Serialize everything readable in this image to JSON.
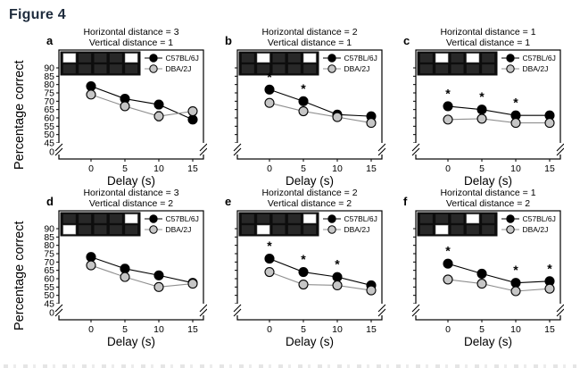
{
  "figure": {
    "label": "Figure 4"
  },
  "y_axis": {
    "label": "Percentage correct",
    "ticks": [
      90,
      85,
      80,
      75,
      70,
      65,
      60,
      55,
      50,
      45
    ],
    "zero_tick": 0,
    "break_between": [
      45,
      0
    ]
  },
  "x_axis": {
    "label": "Delay (s)",
    "ticks": [
      0,
      5,
      10,
      15
    ]
  },
  "legend": {
    "position": "top-right-inside",
    "entries": [
      "C57BL/6J",
      "DBA/2J"
    ]
  },
  "colors": {
    "c57_line": "#000000",
    "c57_fill": "#000000",
    "dba_line": "#8f8f8f",
    "dba_fill": "#c6c6c6",
    "inset_bg": "#0d0d0d",
    "inset_dark_square": "#282828",
    "inset_lit_square": "#ffffff",
    "frame": "#000000",
    "title_text": "#000000",
    "figure_label": "#1f2c3d"
  },
  "chart_data": [
    {
      "id": "panel-a",
      "letter": "a",
      "type": "line",
      "title_line1": "Horizontal distance = 3",
      "title_line2": "Vertical distance = 1",
      "inset": {
        "rows": 2,
        "cols": 5,
        "lit": [
          [
            0,
            0
          ],
          [
            0,
            4
          ]
        ]
      },
      "x": [
        0,
        5,
        10,
        15
      ],
      "series": [
        {
          "name": "C57BL/6J",
          "values": [
            79,
            71.5,
            68,
            59
          ],
          "err": [
            2,
            2,
            2.5,
            2.5
          ]
        },
        {
          "name": "DBA/2J",
          "values": [
            74,
            67,
            61,
            64
          ],
          "err": [
            2,
            2,
            3,
            2.5
          ]
        }
      ],
      "asterisk_x": []
    },
    {
      "id": "panel-b",
      "letter": "b",
      "type": "line",
      "title_line1": "Horizontal distance = 2",
      "title_line2": "Vertical distance = 1",
      "inset": {
        "rows": 2,
        "cols": 5,
        "lit": [
          [
            0,
            1
          ],
          [
            0,
            4
          ]
        ]
      },
      "x": [
        0,
        5,
        10,
        15
      ],
      "series": [
        {
          "name": "C57BL/6J",
          "values": [
            77,
            70,
            62,
            61
          ],
          "err": [
            2,
            2,
            1.5,
            1.5
          ]
        },
        {
          "name": "DBA/2J",
          "values": [
            69,
            64,
            60.5,
            57
          ],
          "err": [
            1.5,
            1.5,
            1.5,
            2
          ]
        }
      ],
      "asterisk_x": [
        0,
        5
      ]
    },
    {
      "id": "panel-c",
      "letter": "c",
      "type": "line",
      "title_line1": "Horizontal distance = 1",
      "title_line2": "Vertical distance = 1",
      "inset": {
        "rows": 2,
        "cols": 5,
        "lit": [
          [
            0,
            1
          ],
          [
            0,
            3
          ]
        ]
      },
      "x": [
        0,
        5,
        10,
        15
      ],
      "series": [
        {
          "name": "C57BL/6J",
          "values": [
            67,
            65,
            61.5,
            61.5
          ],
          "err": [
            1.5,
            1.5,
            1.5,
            1.5
          ]
        },
        {
          "name": "DBA/2J",
          "values": [
            59,
            59.5,
            57,
            57
          ],
          "err": [
            1.5,
            1.5,
            1.5,
            1.5
          ]
        }
      ],
      "asterisk_x": [
        0,
        5,
        10
      ]
    },
    {
      "id": "panel-d",
      "letter": "d",
      "type": "line",
      "title_line1": "Horizontal distance = 3",
      "title_line2": "Vertical distance = 2",
      "inset": {
        "rows": 2,
        "cols": 5,
        "lit": [
          [
            0,
            4
          ],
          [
            1,
            0
          ]
        ]
      },
      "x": [
        0,
        5,
        10,
        15
      ],
      "series": [
        {
          "name": "C57BL/6J",
          "values": [
            73,
            66,
            62,
            57.5
          ],
          "err": [
            2.5,
            2.5,
            2,
            2
          ]
        },
        {
          "name": "DBA/2J",
          "values": [
            68,
            61,
            55,
            57
          ],
          "err": [
            2,
            2.5,
            2.5,
            2
          ]
        }
      ],
      "asterisk_x": []
    },
    {
      "id": "panel-e",
      "letter": "e",
      "type": "line",
      "title_line1": "Horizontal distance = 2",
      "title_line2": "Vertical distance = 2",
      "inset": {
        "rows": 2,
        "cols": 5,
        "lit": [
          [
            0,
            4
          ],
          [
            1,
            1
          ]
        ]
      },
      "x": [
        0,
        5,
        10,
        15
      ],
      "series": [
        {
          "name": "C57BL/6J",
          "values": [
            72,
            64,
            61,
            56
          ],
          "err": [
            2,
            2,
            1.5,
            1.5
          ]
        },
        {
          "name": "DBA/2J",
          "values": [
            64,
            56.5,
            56,
            53
          ],
          "err": [
            2,
            2,
            2,
            1.5
          ]
        }
      ],
      "asterisk_x": [
        0,
        5,
        10
      ]
    },
    {
      "id": "panel-f",
      "letter": "f",
      "type": "line",
      "title_line1": "Horizontal distance = 1",
      "title_line2": "Vertical distance = 2",
      "inset": {
        "rows": 2,
        "cols": 5,
        "lit": [
          [
            0,
            3
          ],
          [
            1,
            1
          ]
        ]
      },
      "x": [
        0,
        5,
        10,
        15
      ],
      "series": [
        {
          "name": "C57BL/6J",
          "values": [
            69,
            63,
            57.5,
            58.5
          ],
          "err": [
            1.5,
            1.5,
            1.5,
            1.5
          ]
        },
        {
          "name": "DBA/2J",
          "values": [
            59.5,
            57,
            52.5,
            54
          ],
          "err": [
            2,
            1.5,
            1.5,
            1.5
          ]
        }
      ],
      "asterisk_x": [
        0,
        10,
        15
      ]
    }
  ]
}
